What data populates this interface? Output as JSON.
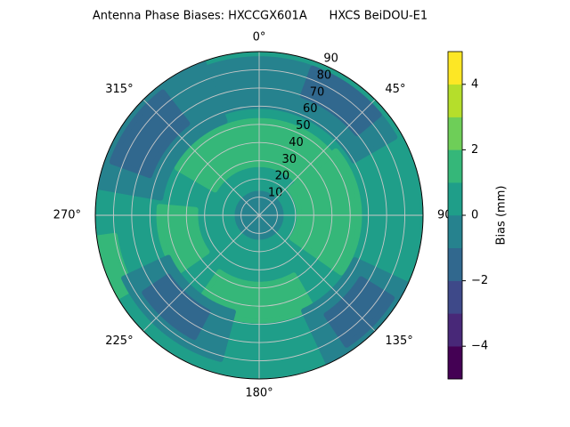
{
  "chart_data": {
    "type": "polar_contour",
    "title": "Antenna Phase Biases: HXCCGX601A      HXCS BeiDOU-E1",
    "levels": [
      -5,
      -4,
      -3,
      -2,
      -1,
      0,
      1,
      2,
      3,
      4,
      5
    ],
    "colors": [
      "#440154",
      "#482878",
      "#3e4989",
      "#31688e",
      "#26828e",
      "#1f9e89",
      "#35b779",
      "#6ece58",
      "#b5de2b",
      "#fde725"
    ],
    "rlim": [
      0,
      90
    ],
    "rticks": [
      10,
      20,
      30,
      40,
      50,
      60,
      70,
      80,
      90
    ],
    "thetaticks": [
      {
        "value": 0,
        "label": "0°"
      },
      {
        "value": 45,
        "label": "45°"
      },
      {
        "value": 90,
        "label": "90°"
      },
      {
        "value": 135,
        "label": "135°"
      },
      {
        "value": 180,
        "label": "180°"
      },
      {
        "value": 225,
        "label": "225°"
      },
      {
        "value": 270,
        "label": "270°"
      },
      {
        "value": 315,
        "label": "315°"
      }
    ],
    "contours": [
      {
        "level": 0,
        "az": [
          0,
          360
        ],
        "r": [
          0,
          90
        ]
      },
      {
        "level": 1,
        "az": [
          300,
          420
        ],
        "r": [
          28,
          52
        ]
      },
      {
        "level": 1,
        "az": [
          50,
          125
        ],
        "r": [
          22,
          55
        ]
      },
      {
        "level": 1,
        "az": [
          150,
          215
        ],
        "r": [
          38,
          58
        ]
      },
      {
        "level": 1,
        "az": [
          235,
          275
        ],
        "r": [
          35,
          55
        ]
      },
      {
        "level": 1,
        "az": [
          240,
          262
        ],
        "r": [
          80,
          90
        ]
      },
      {
        "level": -1,
        "az": [
          0,
          360
        ],
        "r": [
          0,
          12
        ]
      },
      {
        "level": -1,
        "az": [
          335,
          420
        ],
        "r": [
          60,
          86
        ]
      },
      {
        "level": -1,
        "az": [
          280,
          340
        ],
        "r": [
          55,
          90
        ]
      },
      {
        "level": -1,
        "az": [
          115,
          155
        ],
        "r": [
          58,
          90
        ]
      },
      {
        "level": -1,
        "az": [
          195,
          245
        ],
        "r": [
          55,
          82
        ]
      },
      {
        "level": -2,
        "az": [
          20,
          50
        ],
        "r": [
          70,
          86
        ]
      },
      {
        "level": -2,
        "az": [
          290,
          322
        ],
        "r": [
          64,
          86
        ]
      },
      {
        "level": -2,
        "az": [
          122,
          146
        ],
        "r": [
          66,
          86
        ]
      },
      {
        "level": -2,
        "az": [
          208,
          236
        ],
        "r": [
          60,
          76
        ]
      }
    ],
    "colorbar_label": "Bias (mm)",
    "colorbar_ticks": [
      {
        "value": -4,
        "label": "−4"
      },
      {
        "value": -2,
        "label": "−2"
      },
      0,
      2,
      4
    ]
  }
}
